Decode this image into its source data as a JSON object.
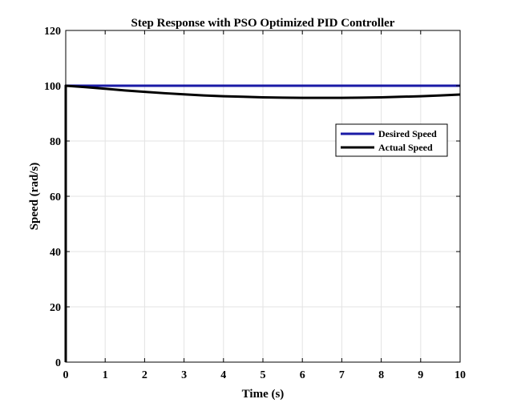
{
  "chart_data": {
    "type": "line",
    "title": "Step Response with PSO Optimized PID Controller",
    "xlabel": "Time (s)",
    "ylabel": "Speed (rad/s)",
    "xlim": [
      0,
      10
    ],
    "ylim": [
      0,
      120
    ],
    "xticks": [
      0,
      1,
      2,
      3,
      4,
      5,
      6,
      7,
      8,
      9,
      10
    ],
    "yticks": [
      0,
      20,
      40,
      60,
      80,
      100,
      120
    ],
    "grid": true,
    "legend_position": "right",
    "series": [
      {
        "name": "Desired Speed",
        "color": "#1a1aa6",
        "x": [
          0,
          0,
          10
        ],
        "y": [
          0,
          100,
          100
        ]
      },
      {
        "name": "Actual Speed",
        "color": "#000000",
        "x": [
          0,
          0,
          0.5,
          1,
          1.5,
          2,
          2.5,
          3,
          3.5,
          4,
          4.5,
          5,
          5.5,
          6,
          6.5,
          7,
          7.5,
          8,
          8.5,
          9,
          9.5,
          10
        ],
        "y": [
          0,
          100,
          99.5,
          98.9,
          98.3,
          97.8,
          97.3,
          96.9,
          96.5,
          96.2,
          96.0,
          95.8,
          95.7,
          95.6,
          95.6,
          95.6,
          95.7,
          95.8,
          96.0,
          96.2,
          96.5,
          96.8
        ]
      }
    ]
  }
}
